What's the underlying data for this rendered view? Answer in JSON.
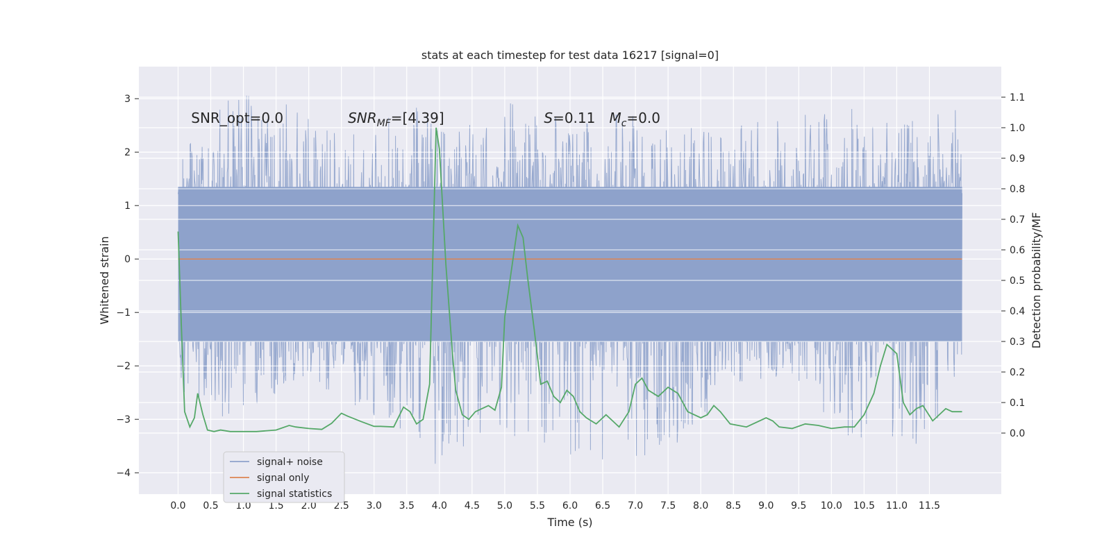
{
  "chart_data": {
    "type": "line",
    "title": "stats at each timestep for test data 16217 [signal=0]",
    "xlabel": "Time (s)",
    "ylabel": "Whitened strain",
    "y2label": "Detection probability/MF",
    "xlim": [
      -0.6,
      12.6
    ],
    "ylim": [
      -4.4,
      3.6
    ],
    "y2lim": [
      -0.2,
      1.2
    ],
    "grid": true,
    "legend_position": "lower-left",
    "x_ticks": [
      "0.0",
      "0.5",
      "1.0",
      "1.5",
      "2.0",
      "2.5",
      "3.0",
      "3.5",
      "4.0",
      "4.5",
      "5.0",
      "5.5",
      "6.0",
      "6.5",
      "7.0",
      "7.5",
      "8.0",
      "8.5",
      "9.0",
      "9.5",
      "10.0",
      "10.5",
      "11.0",
      "11.5"
    ],
    "y_ticks": [
      "3",
      "2",
      "1",
      "0",
      "−1",
      "−2",
      "−3",
      "−4"
    ],
    "y2_ticks": [
      "1.1",
      "1.0",
      "0.9",
      "0.8",
      "0.7",
      "0.6",
      "0.5",
      "0.4",
      "0.3",
      "0.2",
      "0.1",
      "0.0"
    ],
    "annotations": [
      {
        "text": "SNR_opt=0.0",
        "x": 0.2
      },
      {
        "text": "SNR_MF=[4.39]",
        "x": 2.6
      },
      {
        "text": "S=0.11",
        "x": 5.6
      },
      {
        "text": "M_c=0.0",
        "x": 6.6
      }
    ],
    "series": [
      {
        "name": "signal+ noise",
        "color": "#8ea2cb",
        "axis": "left",
        "x_range": [
          0.0,
          12.0
        ],
        "envelope_upper": [
          [
            0.0,
            1.9
          ],
          [
            0.85,
            3.1
          ],
          [
            1.3,
            3.15
          ],
          [
            2.5,
            2.3
          ],
          [
            3.45,
            2.8
          ],
          [
            3.6,
            3.15
          ],
          [
            4.2,
            2.4
          ],
          [
            5.05,
            2.85
          ],
          [
            5.25,
            3.2
          ],
          [
            6.0,
            2.5
          ],
          [
            6.7,
            2.75
          ],
          [
            7.5,
            2.6
          ],
          [
            8.5,
            2.4
          ],
          [
            9.0,
            2.9
          ],
          [
            9.6,
            2.85
          ],
          [
            10.0,
            3.05
          ],
          [
            10.5,
            2.75
          ],
          [
            11.0,
            2.85
          ],
          [
            11.55,
            2.8
          ],
          [
            12.0,
            2.8
          ]
        ],
        "envelope_lower": [
          [
            0.0,
            -2.5
          ],
          [
            0.5,
            -3.05
          ],
          [
            1.05,
            -2.95
          ],
          [
            2.0,
            -2.3
          ],
          [
            2.9,
            -2.85
          ],
          [
            4.15,
            -4.05
          ],
          [
            4.9,
            -3.25
          ],
          [
            6.45,
            -3.85
          ],
          [
            7.3,
            -4.0
          ],
          [
            8.5,
            -2.4
          ],
          [
            9.5,
            -2.3
          ],
          [
            10.1,
            -3.3
          ],
          [
            11.4,
            -3.7
          ],
          [
            12.0,
            -2.3
          ]
        ],
        "band_upper": 1.35,
        "band_lower": -1.55
      },
      {
        "name": "signal only",
        "color": "#dd8452",
        "axis": "left",
        "x": [
          0.0,
          12.0
        ],
        "y": [
          0.0,
          0.0
        ]
      },
      {
        "name": "signal statistics",
        "color": "#55a868",
        "axis": "right",
        "x": [
          0.0,
          0.05,
          0.1,
          0.18,
          0.25,
          0.3,
          0.38,
          0.45,
          0.55,
          0.65,
          0.8,
          1.0,
          1.2,
          1.5,
          1.7,
          1.8,
          2.0,
          2.2,
          2.35,
          2.5,
          2.6,
          2.8,
          3.0,
          3.1,
          3.3,
          3.45,
          3.55,
          3.65,
          3.75,
          3.85,
          3.95,
          4.0,
          4.1,
          4.2,
          4.25,
          4.35,
          4.45,
          4.55,
          4.75,
          4.85,
          4.95,
          5.0,
          5.1,
          5.2,
          5.28,
          5.35,
          5.45,
          5.55,
          5.65,
          5.75,
          5.85,
          5.95,
          6.05,
          6.15,
          6.25,
          6.4,
          6.55,
          6.75,
          6.9,
          7.0,
          7.1,
          7.2,
          7.35,
          7.5,
          7.65,
          7.8,
          8.0,
          8.1,
          8.2,
          8.3,
          8.45,
          8.7,
          9.0,
          9.1,
          9.2,
          9.4,
          9.6,
          9.8,
          10.0,
          10.2,
          10.35,
          10.5,
          10.65,
          10.75,
          10.85,
          11.0,
          11.1,
          11.2,
          11.3,
          11.4,
          11.55,
          11.65,
          11.75,
          11.85,
          12.0
        ],
        "y": [
          0.66,
          0.35,
          0.07,
          0.02,
          0.05,
          0.13,
          0.06,
          0.01,
          0.005,
          0.01,
          0.005,
          0.005,
          0.005,
          0.01,
          0.025,
          0.02,
          0.015,
          0.012,
          0.032,
          0.065,
          0.055,
          0.038,
          0.022,
          0.022,
          0.02,
          0.085,
          0.07,
          0.03,
          0.045,
          0.16,
          1.0,
          0.93,
          0.55,
          0.26,
          0.14,
          0.06,
          0.045,
          0.07,
          0.09,
          0.075,
          0.15,
          0.38,
          0.53,
          0.68,
          0.64,
          0.51,
          0.34,
          0.16,
          0.17,
          0.12,
          0.1,
          0.14,
          0.12,
          0.07,
          0.05,
          0.03,
          0.06,
          0.02,
          0.07,
          0.16,
          0.18,
          0.14,
          0.12,
          0.15,
          0.13,
          0.07,
          0.05,
          0.06,
          0.09,
          0.07,
          0.03,
          0.02,
          0.05,
          0.04,
          0.02,
          0.015,
          0.03,
          0.025,
          0.015,
          0.02,
          0.02,
          0.06,
          0.13,
          0.22,
          0.29,
          0.26,
          0.1,
          0.06,
          0.08,
          0.09,
          0.04,
          0.06,
          0.08,
          0.07,
          0.07
        ]
      }
    ]
  }
}
